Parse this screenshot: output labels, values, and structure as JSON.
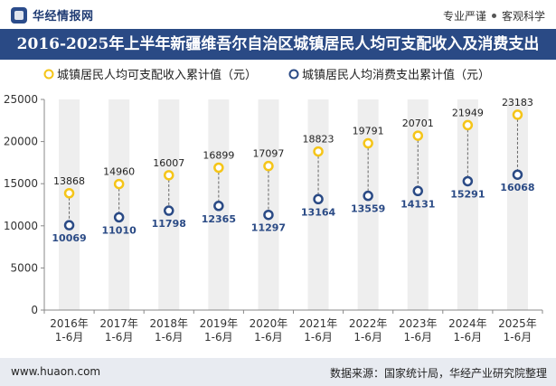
{
  "header": {
    "brand": "华经情报网",
    "tag1": "专业严谨",
    "tag2": "客观科学"
  },
  "title": "2016-2025年上半年新疆维吾尔自治区城镇居民人均可支配收入及消费支出",
  "footer": {
    "url": "www.huaon.com",
    "source": "数据来源：国家统计局，华经产业研究院整理"
  },
  "colors": {
    "income": "#f5c518",
    "expense": "#2a4a85",
    "title_bg": "#2a4a85"
  },
  "chart_data": {
    "type": "scatter",
    "categories": [
      [
        "2016年",
        "1-6月"
      ],
      [
        "2017年",
        "1-6月"
      ],
      [
        "2018年",
        "1-6月"
      ],
      [
        "2019年",
        "1-6月"
      ],
      [
        "2020年",
        "1-6月"
      ],
      [
        "2021年",
        "1-6月"
      ],
      [
        "2022年",
        "1-6月"
      ],
      [
        "2023年",
        "1-6月"
      ],
      [
        "2024年",
        "1-6月"
      ],
      [
        "2025年",
        "1-6月"
      ]
    ],
    "series": [
      {
        "name": "城镇居民人均可支配收入累计值（元）",
        "values": [
          13868,
          14960,
          16007,
          16899,
          17097,
          18823,
          19791,
          20701,
          21949,
          23183
        ]
      },
      {
        "name": "城镇居民人均消费支出累计值（元）",
        "values": [
          10069,
          11010,
          11798,
          12365,
          11297,
          13164,
          13559,
          14131,
          15291,
          16068
        ]
      }
    ],
    "ylim": [
      0,
      25000
    ],
    "yticks": [
      0,
      5000,
      10000,
      15000,
      20000,
      25000
    ],
    "legend": "top-left",
    "grid": false
  }
}
